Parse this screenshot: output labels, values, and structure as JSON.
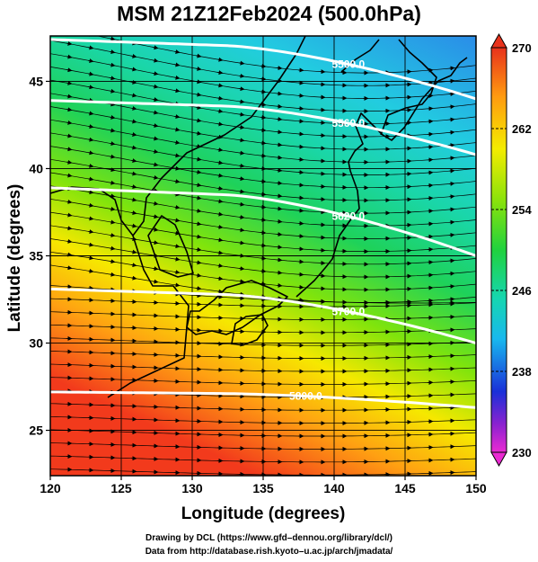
{
  "title": "MSM 21Z12Feb2024 (500.0hPa)",
  "chart_data": {
    "type": "heatmap",
    "xlabel": "Longitude (degrees)",
    "ylabel": "Latitude  (degrees)",
    "xlim": [
      120,
      150
    ],
    "ylim": [
      22.4,
      47.6
    ],
    "x_ticks": [
      "120",
      "125",
      "130",
      "135",
      "140",
      "145",
      "150"
    ],
    "y_ticks": [
      "25",
      "30",
      "35",
      "40",
      "45"
    ],
    "grid": true,
    "colorbar": {
      "ticks": [
        "270",
        "262",
        "254",
        "246",
        "238",
        "230"
      ],
      "range": [
        230,
        270
      ]
    },
    "contours": [
      {
        "label": "5500.0",
        "lat_west": 47.4,
        "lat_east": 44.0,
        "label_lon": 141.0
      },
      {
        "label": "5560.0",
        "lat_west": 43.9,
        "lat_east": 40.8,
        "label_lon": 141.0
      },
      {
        "label": "5620.0",
        "lat_west": 38.9,
        "lat_east": 35.0,
        "label_lon": 141.0
      },
      {
        "label": "5700.0",
        "lat_west": 33.1,
        "lat_east": 30.0,
        "label_lon": 141.0
      },
      {
        "label": "5800.0",
        "lat_west": 27.2,
        "lat_east": 26.3,
        "label_lon": 138.0
      }
    ]
  },
  "footer": {
    "line1": "Drawing by DCL (https://www.gfd–dennou.org/library/dcl/)",
    "line2": "Data from http://database.rish.kyoto–u.ac.jp/arch/jmadata/"
  }
}
